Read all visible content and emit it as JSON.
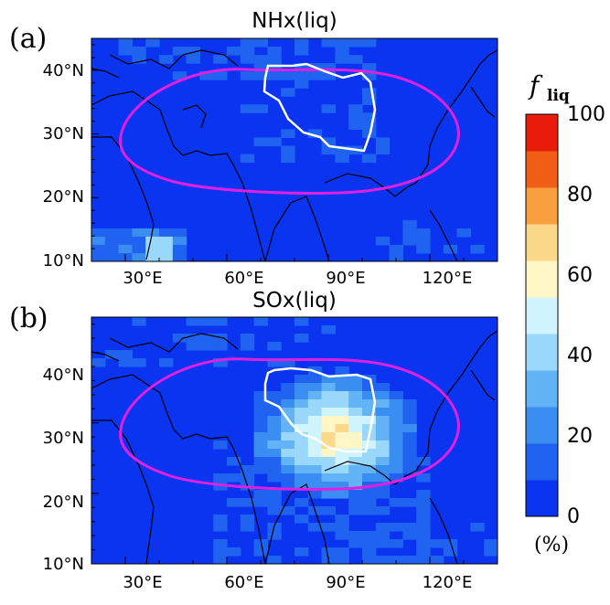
{
  "figure": {
    "panels": [
      {
        "id": "a",
        "letter": "(a)",
        "title": "NHx(liq)"
      },
      {
        "id": "b",
        "letter": "(b)",
        "title": "SOx(liq)"
      }
    ],
    "lat_ticks": [
      "10°N",
      "20°N",
      "30°N",
      "40°N"
    ],
    "lon_ticks": [
      "30°E",
      "60°E",
      "90°E",
      "120°E"
    ],
    "lon_range": [
      20,
      140
    ],
    "lat_range": [
      10,
      45
    ],
    "contour_colors": {
      "outer": "#e020e0",
      "inner": "#ffffff"
    }
  },
  "colorbar": {
    "symbol": "f",
    "subscript": "liq",
    "unit": "(%)",
    "tick_labels": [
      "0",
      "20",
      "40",
      "60",
      "80",
      "100"
    ],
    "levels": [
      0,
      10,
      20,
      30,
      40,
      50,
      60,
      70,
      80,
      90,
      100
    ],
    "colors": [
      "#0a34f0",
      "#1f63f0",
      "#3a8ef2",
      "#62b4f6",
      "#9ad8fb",
      "#cff4fd",
      "#fff6c6",
      "#fcd98a",
      "#f8a040",
      "#f05e18",
      "#e81c08"
    ]
  }
}
